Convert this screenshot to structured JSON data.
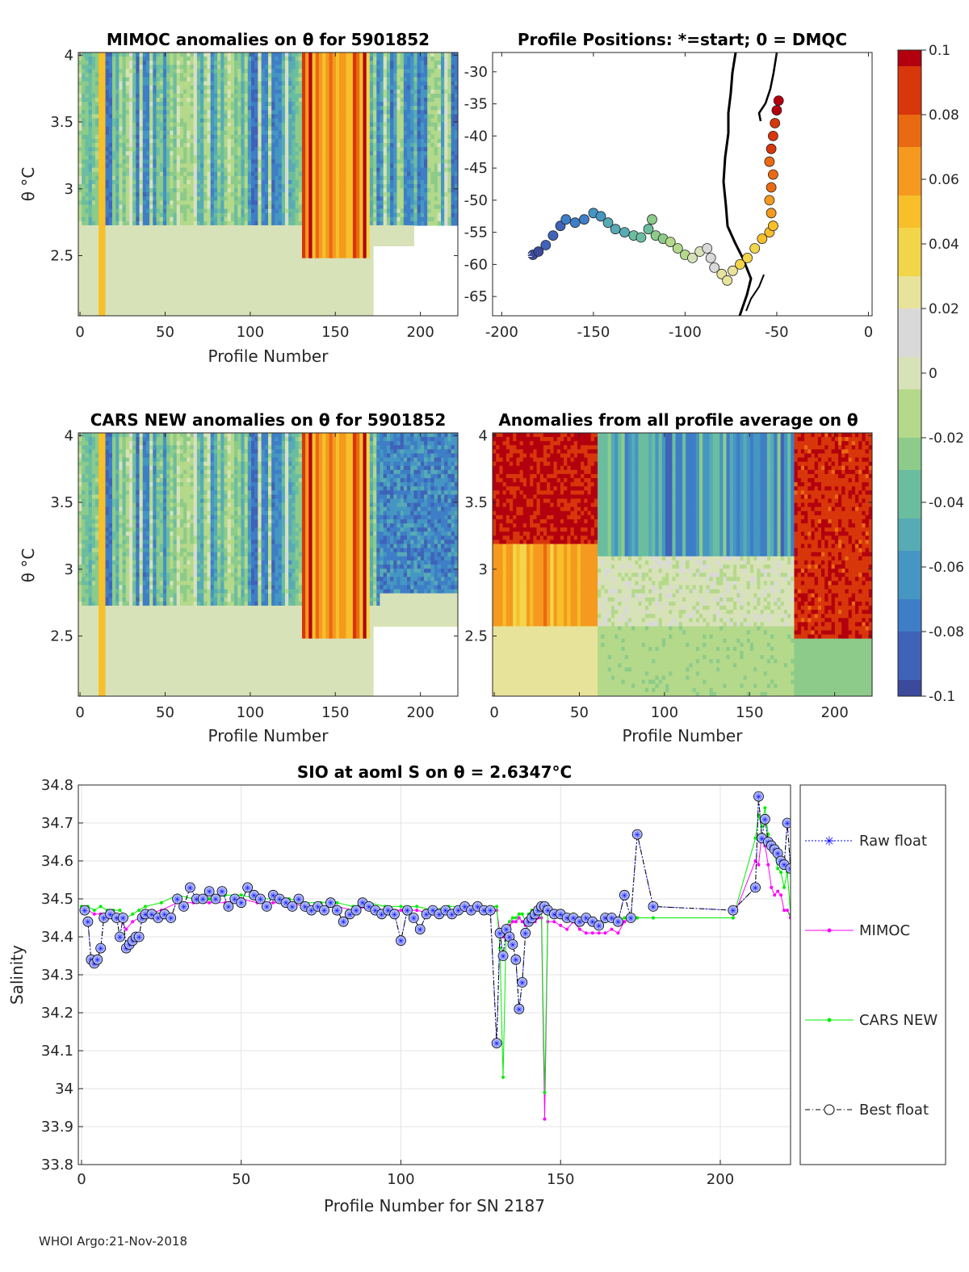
{
  "footer": "WHOI Argo:21-Nov-2018",
  "colormap": [
    "#3b4a9c",
    "#3f63b8",
    "#3e7ec7",
    "#4596c2",
    "#56abb5",
    "#6bbda0",
    "#8ccb8a",
    "#b4d98a",
    "#d8e2b8",
    "#d9d9d9",
    "#e8e39a",
    "#f3d54a",
    "#f7bf2a",
    "#f59a1e",
    "#ea6a12",
    "#d8360b",
    "#b3000e"
  ],
  "colorbar": {
    "ticks": [
      0.1,
      0.08,
      0.06,
      0.04,
      0.02,
      0,
      -0.02,
      -0.04,
      -0.06,
      -0.08,
      -0.1
    ],
    "tick_labels": [
      "0.1",
      "0.08",
      "0.06",
      "0.04",
      "0.02",
      "0",
      "-0.02",
      "-0.04",
      "-0.06",
      "-0.08",
      "-0.1"
    ]
  },
  "panels": {
    "mimoc": {
      "title": "MIMOC anomalies on θ  for 5901852",
      "xlabel": "Profile Number",
      "ylabel": "θ °C",
      "xticks": [
        0,
        50,
        100,
        150,
        200
      ],
      "yticks": [
        2.5,
        3,
        3.5,
        4
      ],
      "xlim": [
        -1,
        222
      ],
      "ylim": [
        2.05,
        4.02
      ]
    },
    "positions": {
      "title": "Profile Positions: *=start; 0 = DMQC",
      "xticks": [
        -200,
        -150,
        -100,
        -50,
        0
      ],
      "yticks": [
        -30,
        -35,
        -40,
        -45,
        -50,
        -55,
        -60,
        -65
      ],
      "xlim": [
        -205,
        2
      ],
      "ylim": [
        -68,
        -27
      ]
    },
    "cars": {
      "title": "CARS NEW anomalies on θ for 5901852",
      "xlabel": "Profile Number",
      "ylabel": "θ °C",
      "xticks": [
        0,
        50,
        100,
        150,
        200
      ],
      "yticks": [
        2.5,
        3,
        3.5,
        4
      ],
      "xlim": [
        -1,
        222
      ],
      "ylim": [
        2.05,
        4.02
      ]
    },
    "avg": {
      "title": "Anomalies from all profile average on θ",
      "xlabel": "Profile Number",
      "xticks": [
        0,
        50,
        100,
        150,
        200
      ],
      "yticks": [
        2.5,
        3,
        3.5,
        4
      ],
      "xlim": [
        -1,
        222
      ],
      "ylim": [
        2.05,
        4.02
      ]
    }
  },
  "chart_data": {
    "type": "line",
    "title": "SIO at aoml S on θ = 2.6347°C",
    "xlabel": "Profile Number for SN 2187",
    "ylabel": "Salinity",
    "xlim": [
      -1,
      222
    ],
    "ylim": [
      33.8,
      34.8
    ],
    "xticks": [
      0,
      50,
      100,
      150,
      200
    ],
    "yticks": [
      33.8,
      33.9,
      34,
      34.1,
      34.2,
      34.3,
      34.4,
      34.5,
      34.6,
      34.7,
      34.8
    ],
    "ytick_labels": [
      "33.8",
      "33.9",
      "34",
      "34.1",
      "34.2",
      "34.3",
      "34.4",
      "34.5",
      "34.6",
      "34.7",
      "34.8"
    ],
    "grid": true,
    "legend": [
      "Raw float",
      "MIMOC",
      "CARS NEW",
      "Best float"
    ],
    "series": [
      {
        "name": "Raw float",
        "color": "#0000ff",
        "x": [
          1,
          2,
          3,
          4,
          5,
          6,
          7,
          9,
          11,
          12,
          13,
          14,
          15,
          16,
          17,
          18,
          19,
          20,
          22,
          24,
          26,
          28,
          30,
          32,
          34,
          36,
          38,
          40,
          42,
          44,
          46,
          48,
          50,
          52,
          54,
          56,
          58,
          60,
          62,
          64,
          66,
          68,
          70,
          72,
          74,
          76,
          78,
          80,
          82,
          84,
          86,
          88,
          90,
          92,
          94,
          96,
          98,
          100,
          102,
          104,
          106,
          108,
          110,
          112,
          114,
          116,
          118,
          120,
          122,
          124,
          126,
          128,
          130,
          131,
          132,
          133,
          134,
          135,
          136,
          137,
          138,
          139,
          140,
          141,
          142,
          143,
          144,
          145,
          146,
          148,
          150,
          152,
          154,
          156,
          158,
          160,
          162,
          164,
          166,
          168,
          170,
          172,
          174,
          179,
          204,
          211,
          212,
          213,
          214,
          215,
          216,
          217,
          218,
          219,
          220,
          221,
          222
        ],
        "y": [
          34.47,
          34.44,
          34.34,
          34.33,
          34.34,
          34.37,
          34.45,
          34.46,
          34.45,
          34.4,
          34.45,
          34.37,
          34.38,
          34.39,
          34.4,
          34.4,
          34.45,
          34.46,
          34.46,
          34.45,
          34.46,
          34.45,
          34.5,
          34.48,
          34.53,
          34.5,
          34.5,
          34.52,
          34.5,
          34.52,
          34.48,
          34.5,
          34.49,
          34.53,
          34.51,
          34.5,
          34.48,
          34.51,
          34.5,
          34.49,
          34.48,
          34.5,
          34.48,
          34.47,
          34.48,
          34.47,
          34.49,
          34.47,
          34.44,
          34.46,
          34.47,
          34.49,
          34.48,
          34.47,
          34.46,
          34.47,
          34.46,
          34.39,
          34.47,
          34.45,
          34.42,
          34.46,
          34.47,
          34.46,
          34.47,
          34.46,
          34.47,
          34.48,
          34.47,
          34.48,
          34.47,
          34.47,
          34.12,
          34.41,
          34.35,
          34.42,
          34.4,
          34.38,
          34.34,
          34.21,
          34.28,
          34.41,
          34.44,
          34.45,
          34.46,
          34.47,
          34.48,
          34.48,
          34.47,
          34.46,
          34.46,
          34.45,
          34.45,
          34.44,
          34.45,
          34.44,
          34.43,
          34.45,
          34.45,
          34.44,
          34.51,
          34.45,
          34.67,
          34.48,
          34.47,
          34.53,
          34.77,
          34.66,
          34.71,
          34.65,
          34.64,
          34.63,
          34.62,
          34.6,
          34.59,
          34.7,
          34.58
        ]
      },
      {
        "name": "MIMOC",
        "color": "#ff00ff",
        "x": [
          0,
          2,
          4,
          6,
          8,
          10,
          12,
          14,
          16,
          18,
          20,
          25,
          30,
          35,
          40,
          45,
          50,
          55,
          60,
          65,
          70,
          75,
          80,
          85,
          90,
          95,
          100,
          105,
          110,
          115,
          120,
          125,
          130,
          131,
          132,
          133,
          134,
          135,
          136,
          137,
          138,
          139,
          140,
          141,
          142,
          143,
          144,
          145,
          146,
          148,
          150,
          152,
          154,
          156,
          158,
          160,
          162,
          164,
          166,
          168,
          170,
          172,
          174,
          179,
          204,
          211,
          212,
          213,
          214,
          215,
          216,
          217,
          218,
          219,
          220,
          221,
          222
        ],
        "y": [
          34.47,
          34.47,
          34.46,
          34.46,
          34.45,
          34.45,
          34.45,
          34.42,
          34.44,
          34.45,
          34.46,
          34.47,
          34.49,
          34.49,
          34.49,
          34.49,
          34.5,
          34.49,
          34.49,
          34.49,
          34.48,
          34.48,
          34.48,
          34.47,
          34.48,
          34.47,
          34.47,
          34.47,
          34.46,
          34.47,
          34.47,
          34.47,
          34.47,
          34.41,
          34.4,
          34.41,
          34.43,
          34.44,
          34.44,
          34.45,
          34.44,
          34.43,
          34.44,
          34.45,
          34.44,
          34.45,
          34.45,
          33.92,
          34.44,
          34.44,
          34.43,
          34.42,
          34.44,
          34.42,
          34.41,
          34.41,
          34.41,
          34.41,
          34.42,
          34.41,
          34.44,
          34.45,
          34.45,
          34.45,
          34.45,
          34.6,
          34.59,
          34.67,
          34.64,
          34.59,
          34.53,
          34.51,
          34.52,
          34.51,
          34.47,
          34.47,
          34.45
        ]
      },
      {
        "name": "CARS NEW",
        "color": "#00ee00",
        "x": [
          0,
          2,
          4,
          6,
          8,
          10,
          12,
          14,
          16,
          18,
          20,
          25,
          30,
          35,
          40,
          45,
          50,
          55,
          60,
          65,
          70,
          75,
          80,
          85,
          90,
          95,
          100,
          105,
          110,
          115,
          120,
          125,
          130,
          131,
          132,
          133,
          134,
          135,
          136,
          137,
          138,
          139,
          140,
          141,
          142,
          143,
          144,
          145,
          146,
          148,
          150,
          152,
          154,
          156,
          158,
          160,
          162,
          164,
          166,
          168,
          170,
          172,
          174,
          179,
          204,
          211,
          212,
          213,
          214,
          215,
          216,
          217,
          218,
          219,
          220,
          221,
          222
        ],
        "y": [
          34.48,
          34.48,
          34.47,
          34.48,
          34.47,
          34.47,
          34.47,
          34.45,
          34.46,
          34.47,
          34.48,
          34.49,
          34.51,
          34.5,
          34.5,
          34.51,
          34.51,
          34.5,
          34.5,
          34.5,
          34.49,
          34.49,
          34.49,
          34.48,
          34.49,
          34.48,
          34.48,
          34.48,
          34.47,
          34.48,
          34.48,
          34.48,
          34.48,
          34.37,
          34.03,
          34.43,
          34.44,
          34.45,
          34.45,
          34.46,
          34.46,
          34.44,
          34.46,
          34.47,
          34.47,
          34.48,
          34.48,
          33.99,
          34.46,
          34.46,
          34.46,
          34.45,
          34.46,
          34.45,
          34.45,
          34.44,
          34.44,
          34.44,
          34.45,
          34.44,
          34.45,
          34.45,
          34.45,
          34.45,
          34.45,
          34.66,
          34.72,
          34.69,
          34.74,
          34.67,
          34.63,
          34.62,
          34.58,
          34.57,
          34.53,
          34.57,
          34.46
        ]
      },
      {
        "name": "Best float",
        "color": "#000000",
        "x": [
          1,
          2,
          3,
          4,
          5,
          6,
          7,
          9,
          11,
          12,
          13,
          14,
          15,
          16,
          17,
          18,
          19,
          20,
          22,
          24,
          26,
          28,
          30,
          32,
          34,
          36,
          38,
          40,
          42,
          44,
          46,
          48,
          50,
          52,
          54,
          56,
          58,
          60,
          62,
          64,
          66,
          68,
          70,
          72,
          74,
          76,
          78,
          80,
          82,
          84,
          86,
          88,
          90,
          92,
          94,
          96,
          98,
          100,
          102,
          104,
          106,
          108,
          110,
          112,
          114,
          116,
          118,
          120,
          122,
          124,
          126,
          128,
          130,
          131,
          132,
          133,
          134,
          135,
          136,
          137,
          138,
          139,
          140,
          141,
          142,
          143,
          144,
          145,
          146,
          148,
          150,
          152,
          154,
          156,
          158,
          160,
          162,
          164,
          166,
          168,
          170,
          172,
          174,
          179,
          204,
          211,
          212,
          213,
          214,
          215,
          216,
          217,
          218,
          219,
          220,
          221,
          222
        ],
        "y": [
          34.47,
          34.44,
          34.34,
          34.33,
          34.34,
          34.37,
          34.45,
          34.46,
          34.45,
          34.4,
          34.45,
          34.37,
          34.38,
          34.39,
          34.4,
          34.4,
          34.45,
          34.46,
          34.46,
          34.45,
          34.46,
          34.45,
          34.5,
          34.48,
          34.53,
          34.5,
          34.5,
          34.52,
          34.5,
          34.52,
          34.48,
          34.5,
          34.49,
          34.53,
          34.51,
          34.5,
          34.48,
          34.51,
          34.5,
          34.49,
          34.48,
          34.5,
          34.48,
          34.47,
          34.48,
          34.47,
          34.49,
          34.47,
          34.44,
          34.46,
          34.47,
          34.49,
          34.48,
          34.47,
          34.46,
          34.47,
          34.46,
          34.39,
          34.47,
          34.45,
          34.42,
          34.46,
          34.47,
          34.46,
          34.47,
          34.46,
          34.47,
          34.48,
          34.47,
          34.48,
          34.47,
          34.47,
          34.12,
          34.41,
          34.35,
          34.42,
          34.4,
          34.38,
          34.34,
          34.21,
          34.28,
          34.41,
          34.44,
          34.45,
          34.46,
          34.47,
          34.48,
          34.48,
          34.47,
          34.46,
          34.46,
          34.45,
          34.45,
          34.44,
          34.45,
          34.44,
          34.43,
          34.45,
          34.45,
          34.44,
          34.51,
          34.45,
          34.67,
          34.48,
          34.47,
          34.53,
          34.77,
          34.66,
          34.71,
          34.65,
          34.64,
          34.63,
          34.62,
          34.6,
          34.59,
          34.7,
          34.58
        ]
      }
    ]
  }
}
